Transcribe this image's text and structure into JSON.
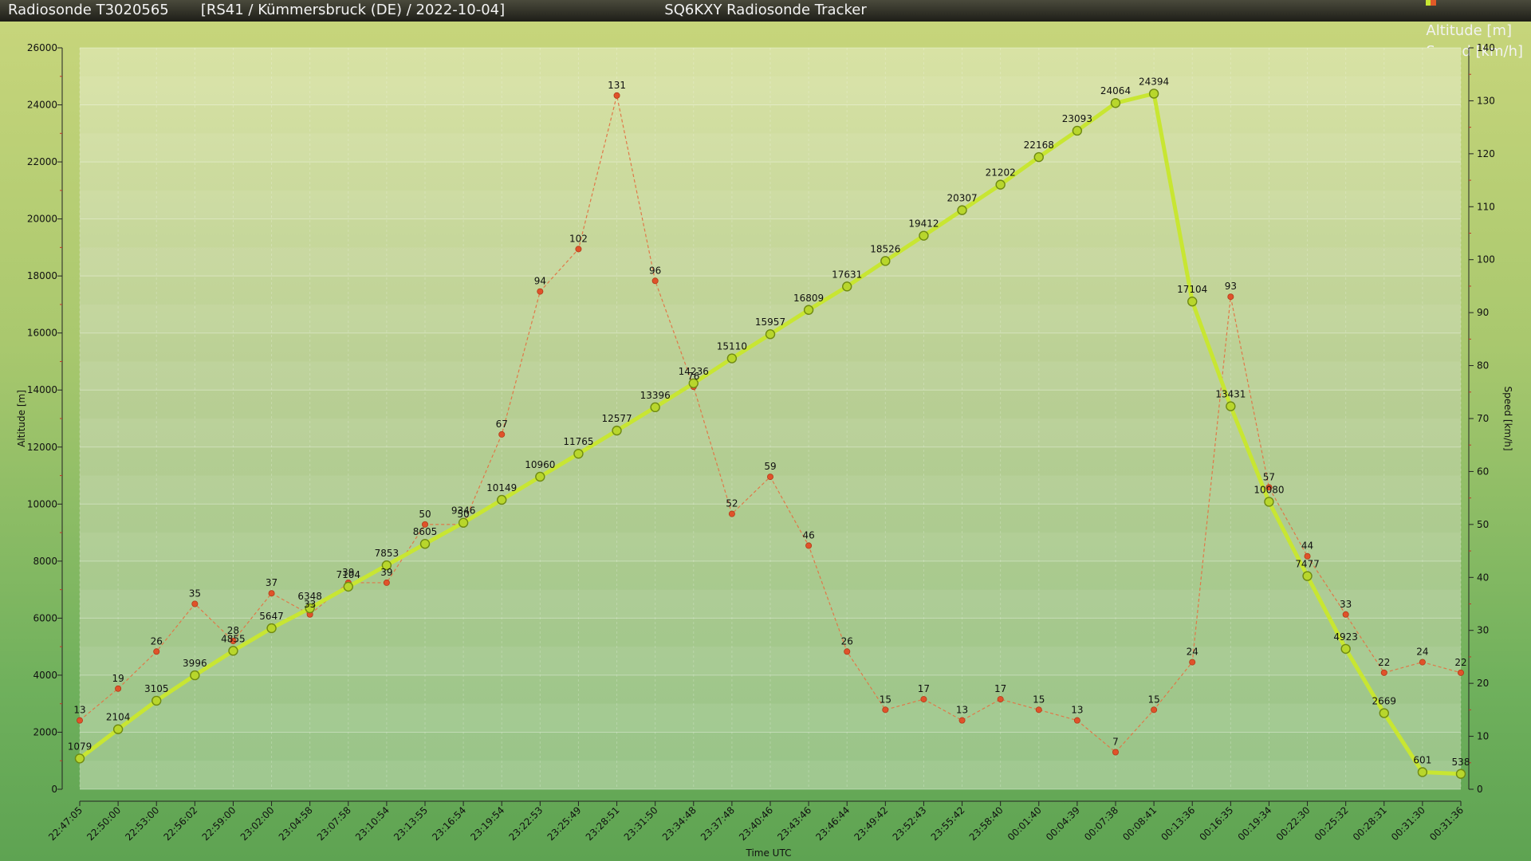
{
  "header": {
    "sonde_title": "Radiosonde T3020565",
    "flight_info": "[RS41 / Kümmersbruck (DE) / 2022-10-04]",
    "app_title": "SQ6KXY Radiosonde Tracker",
    "legend": [
      {
        "label": "Altitude [m]",
        "color": "#c8e632"
      },
      {
        "label": "Speed [km/h]",
        "color": "#e05a28"
      }
    ]
  },
  "chart_data": {
    "type": "line",
    "xlabel": "Time UTC",
    "ylabel_left": "Altitude [m]",
    "ylabel_right": "Speed [km/h]",
    "y_left_range": [
      0,
      26000
    ],
    "y_left_ticks": [
      "0",
      "2000",
      "4000",
      "6000",
      "8000",
      "10000",
      "12000",
      "14000",
      "16000",
      "18000",
      "20000",
      "22000",
      "24000",
      "26000"
    ],
    "y_right_range": [
      0,
      140
    ],
    "y_right_ticks": [
      "0",
      "10",
      "20",
      "30",
      "40",
      "50",
      "60",
      "70",
      "80",
      "90",
      "100",
      "110",
      "120",
      "130",
      "140"
    ],
    "categories": [
      "22:47:05",
      "22:50:00",
      "22:53:00",
      "22:56:02",
      "22:59:00",
      "23:02:00",
      "23:04:58",
      "23:07:58",
      "23:10:54",
      "23:13:55",
      "23:16:54",
      "23:19:54",
      "23:22:53",
      "23:25:49",
      "23:28:51",
      "23:31:50",
      "23:34:48",
      "23:37:48",
      "23:40:46",
      "23:43:46",
      "23:46:44",
      "23:49:42",
      "23:52:43",
      "23:55:42",
      "23:58:40",
      "00:01:40",
      "00:04:39",
      "00:07:38",
      "00:08:41",
      "00:13:36",
      "00:16:35",
      "00:19:34",
      "00:22:30",
      "00:25:32",
      "00:28:31",
      "00:31:30",
      "00:31:36"
    ],
    "series": [
      {
        "name": "Altitude [m]",
        "axis": "left",
        "color": "#c8e632",
        "values": [
          1079,
          2104,
          3105,
          3996,
          4855,
          5647,
          6348,
          7104,
          7853,
          8605,
          9346,
          10149,
          10960,
          11765,
          12577,
          13396,
          14236,
          15110,
          15957,
          16809,
          17631,
          18526,
          19412,
          20307,
          21202,
          22168,
          23093,
          24064,
          24394,
          17104,
          13431,
          10080,
          7477,
          4923,
          2669,
          601,
          538
        ]
      },
      {
        "name": "Speed [km/h]",
        "axis": "right",
        "color": "#e05a28",
        "values": [
          13,
          19,
          26,
          35,
          28,
          37,
          33,
          39,
          39,
          50,
          50,
          67,
          94,
          102,
          131,
          96,
          76,
          52,
          59,
          46,
          26,
          15,
          17,
          13,
          17,
          15,
          13,
          7,
          15,
          24,
          93,
          57,
          44,
          33,
          22,
          24,
          22
        ]
      }
    ],
    "grid": true,
    "legend_position": "top-right"
  }
}
